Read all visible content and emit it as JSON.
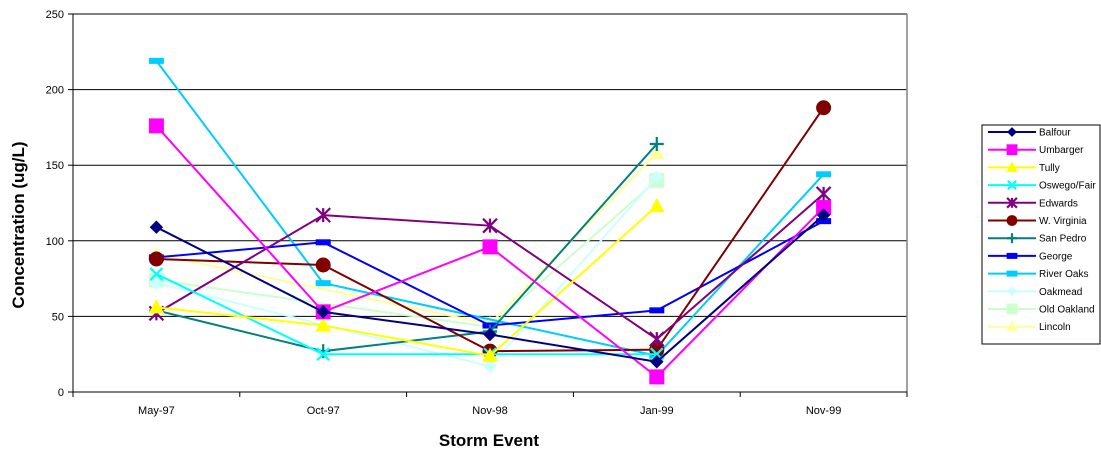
{
  "chart_data": {
    "type": "line",
    "xlabel": "Storm Event",
    "ylabel": "Concentration (ug/L)",
    "categories": [
      "May-97",
      "Oct-97",
      "Nov-98",
      "Jan-99",
      "Nov-99"
    ],
    "ylim": [
      0,
      250
    ],
    "yticks": [
      0,
      50,
      100,
      150,
      200,
      250
    ],
    "grid": true,
    "legend_position": "right",
    "series": [
      {
        "name": "Balfour",
        "color": "#000080",
        "marker": "diamond",
        "values": [
          109,
          53,
          38,
          20,
          117
        ]
      },
      {
        "name": "Umbarger",
        "color": "#ff00ff",
        "marker": "square",
        "values": [
          176,
          53,
          96,
          10,
          122
        ]
      },
      {
        "name": "Tully",
        "color": "#ffff00",
        "marker": "triangle",
        "values": [
          56,
          44,
          24,
          123,
          null
        ]
      },
      {
        "name": "Oswego/Fair",
        "color": "#00ffff",
        "marker": "x",
        "values": [
          78,
          25,
          25,
          25,
          null
        ]
      },
      {
        "name": "Edwards",
        "color": "#800080",
        "marker": "star",
        "values": [
          52,
          117,
          110,
          35,
          131
        ]
      },
      {
        "name": "W. Virginia",
        "color": "#800000",
        "marker": "circle",
        "values": [
          88,
          84,
          27,
          28,
          188
        ]
      },
      {
        "name": "San Pedro",
        "color": "#008080",
        "marker": "plus",
        "values": [
          54,
          27,
          40,
          164,
          null
        ]
      },
      {
        "name": "George",
        "color": "#0000ff",
        "marker": "dash",
        "values": [
          89,
          99,
          44,
          54,
          113
        ]
      },
      {
        "name": "River Oaks",
        "color": "#00ccff",
        "marker": "dash",
        "values": [
          219,
          72,
          null,
          24,
          144
        ]
      },
      {
        "name": "Oakmead",
        "color": "#ccffff",
        "marker": "diamond",
        "values": [
          72,
          null,
          17,
          142,
          null
        ]
      },
      {
        "name": "Old Oakland",
        "color": "#ccffcc",
        "marker": "square",
        "values": [
          74,
          null,
          43,
          140,
          null
        ]
      },
      {
        "name": "Lincoln",
        "color": "#ffff99",
        "marker": "triangle",
        "values": [
          91,
          null,
          45,
          158,
          null
        ]
      }
    ]
  }
}
